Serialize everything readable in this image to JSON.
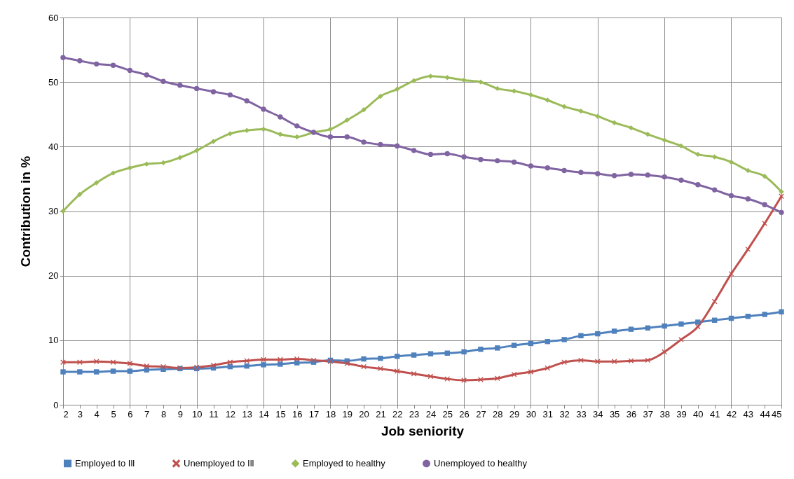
{
  "chart_data": {
    "type": "line",
    "xlabel": "Job seniority",
    "ylabel": "Contribution in %",
    "x": [
      2,
      3,
      4,
      5,
      6,
      7,
      8,
      9,
      10,
      11,
      12,
      13,
      14,
      15,
      16,
      17,
      18,
      19,
      20,
      21,
      22,
      23,
      24,
      25,
      26,
      27,
      28,
      29,
      30,
      31,
      32,
      33,
      34,
      35,
      36,
      37,
      38,
      39,
      40,
      41,
      42,
      43,
      44,
      45
    ],
    "xlim": [
      2,
      45
    ],
    "xticks": [
      2,
      3,
      4,
      5,
      6,
      7,
      8,
      9,
      10,
      11,
      12,
      13,
      14,
      15,
      16,
      17,
      18,
      19,
      20,
      21,
      22,
      23,
      24,
      25,
      26,
      27,
      28,
      29,
      30,
      31,
      32,
      33,
      34,
      35,
      36,
      37,
      38,
      39,
      40,
      41,
      42,
      43,
      44,
      45
    ],
    "ylim": [
      0,
      60
    ],
    "yticks": [
      0,
      10,
      20,
      30,
      40,
      50,
      60
    ],
    "grid": true,
    "legend": "bottom",
    "line_style": "solid",
    "series": [
      {
        "name": "Employed to Ill",
        "color": "#4f81bd",
        "marker": "square",
        "values": [
          5.1,
          5.1,
          5.1,
          5.2,
          5.2,
          5.4,
          5.5,
          5.6,
          5.6,
          5.7,
          5.9,
          6.0,
          6.2,
          6.3,
          6.5,
          6.6,
          6.9,
          6.8,
          7.1,
          7.2,
          7.5,
          7.7,
          7.9,
          8.0,
          8.2,
          8.6,
          8.8,
          9.2,
          9.5,
          9.8,
          10.1,
          10.7,
          11.0,
          11.4,
          11.7,
          11.9,
          12.2,
          12.5,
          12.8,
          13.1,
          13.4,
          13.7,
          14.0,
          14.4
        ]
      },
      {
        "name": "Unemployed to Ill",
        "color": "#c0504d",
        "marker": "cross",
        "values": [
          6.6,
          6.6,
          6.7,
          6.6,
          6.4,
          6.0,
          5.9,
          5.7,
          5.8,
          6.1,
          6.6,
          6.8,
          7.0,
          7.0,
          7.1,
          6.9,
          6.7,
          6.4,
          5.9,
          5.6,
          5.2,
          4.8,
          4.4,
          4.0,
          3.8,
          3.9,
          4.1,
          4.7,
          5.1,
          5.7,
          6.6,
          6.9,
          6.7,
          6.7,
          6.8,
          6.9,
          8.2,
          10.1,
          12.1,
          16.0,
          20.3,
          24.1,
          28.1,
          32.3
        ]
      },
      {
        "name": "Employed to healthy",
        "color": "#9bbb59",
        "marker": "diamond",
        "values": [
          30.0,
          32.6,
          34.4,
          35.9,
          36.7,
          37.3,
          37.5,
          38.3,
          39.4,
          40.8,
          42.0,
          42.5,
          42.7,
          41.9,
          41.5,
          42.2,
          42.7,
          44.1,
          45.7,
          47.8,
          48.9,
          50.2,
          50.9,
          50.7,
          50.3,
          50.0,
          49.0,
          48.6,
          48.0,
          47.2,
          46.2,
          45.5,
          44.7,
          43.7,
          42.9,
          41.9,
          41.0,
          40.1,
          38.8,
          38.4,
          37.6,
          36.3,
          35.4,
          33.0
        ]
      },
      {
        "name": "Unemployed to healthy",
        "color": "#8064a2",
        "marker": "circle",
        "values": [
          53.8,
          53.3,
          52.8,
          52.6,
          51.8,
          51.1,
          50.1,
          49.5,
          49.0,
          48.5,
          48.0,
          47.1,
          45.8,
          44.6,
          43.2,
          42.2,
          41.5,
          41.5,
          40.7,
          40.3,
          40.1,
          39.4,
          38.8,
          38.9,
          38.4,
          38.0,
          37.8,
          37.6,
          37.0,
          36.7,
          36.3,
          36.0,
          35.8,
          35.5,
          35.7,
          35.6,
          35.3,
          34.8,
          34.1,
          33.3,
          32.4,
          31.9,
          31.0,
          29.8
        ]
      }
    ]
  }
}
